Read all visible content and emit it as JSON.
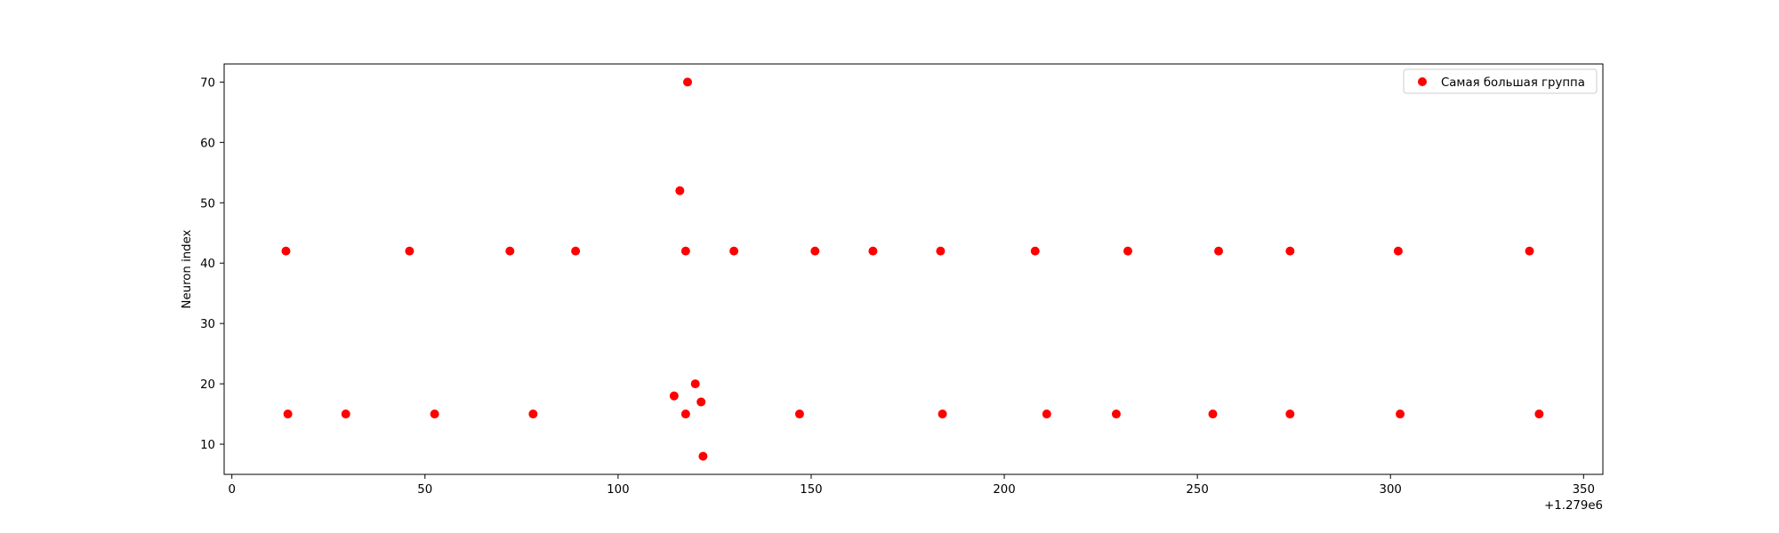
{
  "chart_data": {
    "type": "scatter",
    "title": "",
    "xlabel": "",
    "ylabel": "Neuron index",
    "x_offset_label": "+1.279e6",
    "xlim": [
      -2,
      355
    ],
    "ylim": [
      5,
      73
    ],
    "xticks": [
      0,
      50,
      100,
      150,
      200,
      250,
      300,
      350
    ],
    "yticks": [
      10,
      20,
      30,
      40,
      50,
      60,
      70
    ],
    "grid": false,
    "legend_position": "top-right",
    "series": [
      {
        "name": "Самая большая группа",
        "color": "#ff0000",
        "x": [
          14,
          46,
          72,
          89,
          117.5,
          130,
          151,
          166,
          183.5,
          208,
          232,
          255.5,
          274,
          302,
          336,
          14.5,
          29.5,
          52.5,
          78,
          117.5,
          147,
          184,
          211,
          229,
          254,
          274,
          302.5,
          338.5,
          114.5,
          120,
          121.5,
          122,
          116,
          118
        ],
        "y": [
          42,
          42,
          42,
          42,
          42,
          42,
          42,
          42,
          42,
          42,
          42,
          42,
          42,
          42,
          42,
          15,
          15,
          15,
          15,
          15,
          15,
          15,
          15,
          15,
          15,
          15,
          15,
          15,
          18,
          20,
          17,
          8,
          52,
          70
        ]
      }
    ]
  }
}
